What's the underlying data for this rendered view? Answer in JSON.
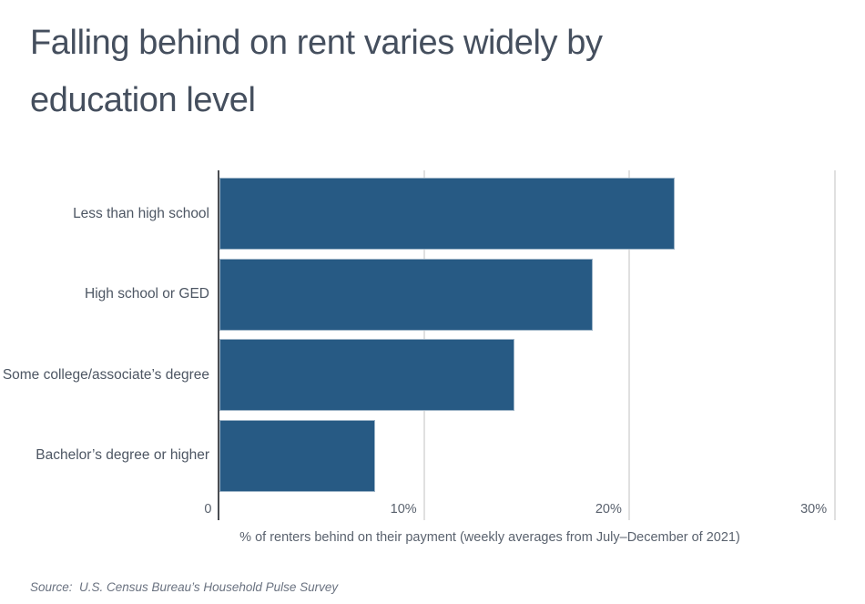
{
  "title": {
    "lines": [
      "Falling behind on rent varies widely by",
      "education level"
    ]
  },
  "chart_data": {
    "type": "bar",
    "orientation": "horizontal",
    "title": "Falling behind on rent varies widely by education level",
    "categories": [
      "Less than high school",
      "High school or GED",
      "Some college/associate’s degree",
      "Bachelor’s degree or higher"
    ],
    "values": [
      22.2,
      18.2,
      14.4,
      7.6
    ],
    "unit": "%",
    "xlabel": "% of renters behind on their payment (weekly averages from July–December of 2021)",
    "xlim": [
      0,
      30
    ],
    "xticks": [
      {
        "value": 0,
        "label": "0"
      },
      {
        "value": 10,
        "label": "10%"
      },
      {
        "value": 20,
        "label": "20%"
      },
      {
        "value": 30,
        "label": "30%"
      }
    ],
    "grid": true,
    "legend": false,
    "bar_color": "#275a84",
    "axis_line_color": "#4a4d52",
    "gridline_color": "#e0e0e0"
  },
  "source": {
    "text": "Source:  U.S. Census Bureau’s Household Pulse Survey"
  }
}
